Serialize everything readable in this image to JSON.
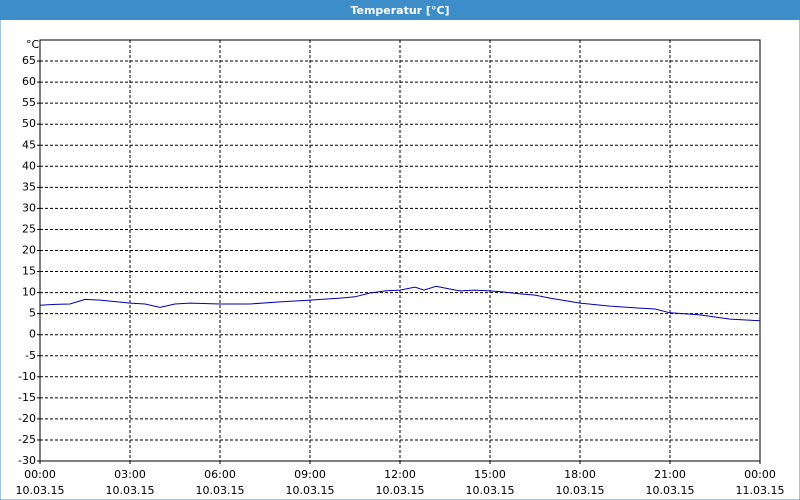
{
  "chart_data": {
    "type": "line",
    "title": "Temperatur [°C]",
    "y_unit": "°C",
    "x": [
      0,
      0.5,
      1,
      1.5,
      2,
      3,
      3.5,
      4,
      4.5,
      5,
      6,
      7,
      8,
      9,
      10,
      10.5,
      11,
      11.5,
      12,
      12.5,
      12.8,
      13.2,
      13.7,
      14,
      14.5,
      15,
      15.5,
      16,
      16.5,
      17,
      18,
      19,
      20,
      20.5,
      21,
      22,
      23,
      24
    ],
    "series": [
      {
        "name": "Temperatur",
        "color": "#0000b0",
        "values": [
          7,
          7.2,
          7.3,
          8.4,
          8.2,
          7.5,
          7.3,
          6.5,
          7.3,
          7.5,
          7.3,
          7.3,
          7.8,
          8.2,
          8.7,
          9.0,
          9.9,
          10.4,
          10.6,
          11.3,
          10.6,
          11.5,
          10.8,
          10.4,
          10.6,
          10.4,
          10.1,
          9.7,
          9.4,
          8.7,
          7.5,
          6.8,
          6.3,
          6.1,
          5.2,
          4.7,
          3.7,
          3.3
        ]
      }
    ],
    "xlim": [
      0,
      24
    ],
    "xticks": [
      {
        "value": 0,
        "label": "00:00",
        "date": "10.03.15"
      },
      {
        "value": 3,
        "label": "03:00",
        "date": "10.03.15"
      },
      {
        "value": 6,
        "label": "06:00",
        "date": "10.03.15"
      },
      {
        "value": 9,
        "label": "09:00",
        "date": "10.03.15"
      },
      {
        "value": 12,
        "label": "12:00",
        "date": "10.03.15"
      },
      {
        "value": 15,
        "label": "15:00",
        "date": "10.03.15"
      },
      {
        "value": 18,
        "label": "18:00",
        "date": "10.03.15"
      },
      {
        "value": 21,
        "label": "21:00",
        "date": "10.03.15"
      },
      {
        "value": 24,
        "label": "00:00",
        "date": "11.03.15"
      }
    ],
    "ylim": [
      -30,
      70
    ],
    "yticks": [
      -30,
      -25,
      -20,
      -15,
      -10,
      -5,
      0,
      5,
      10,
      15,
      20,
      25,
      30,
      35,
      40,
      45,
      50,
      55,
      60,
      65
    ],
    "grid": true
  }
}
